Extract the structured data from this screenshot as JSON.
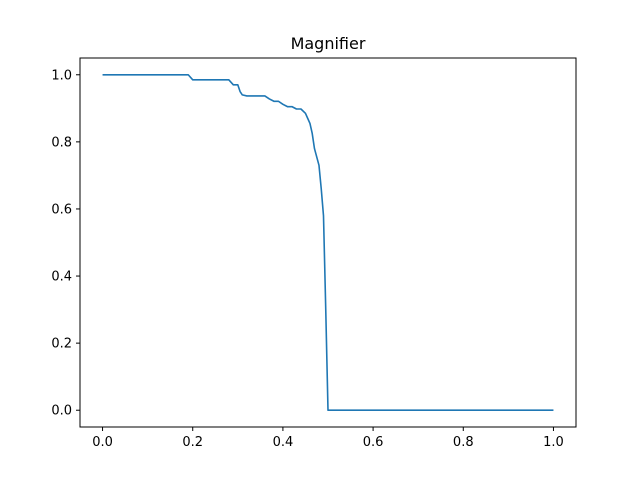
{
  "chart_data": {
    "type": "line",
    "title": "Magnifier",
    "xlabel": "",
    "ylabel": "",
    "xlim": [
      -0.05,
      1.05
    ],
    "ylim": [
      -0.05,
      1.05
    ],
    "x_ticks": [
      0.0,
      0.2,
      0.4,
      0.6,
      0.8,
      1.0
    ],
    "x_tick_labels": [
      "0.0",
      "0.2",
      "0.4",
      "0.6",
      "0.8",
      "1.0"
    ],
    "y_ticks": [
      0.0,
      0.2,
      0.4,
      0.6,
      0.8,
      1.0
    ],
    "y_tick_labels": [
      "0.0",
      "0.2",
      "0.4",
      "0.6",
      "0.8",
      "1.0"
    ],
    "grid": false,
    "legend": "none",
    "series": [
      {
        "color": "#1f77b4",
        "x": [
          0.0,
          0.19,
          0.2,
          0.28,
          0.29,
          0.3,
          0.305,
          0.31,
          0.32,
          0.36,
          0.37,
          0.38,
          0.39,
          0.4,
          0.41,
          0.42,
          0.43,
          0.44,
          0.45,
          0.455,
          0.46,
          0.465,
          0.47,
          0.475,
          0.48,
          0.485,
          0.49,
          0.495,
          0.5,
          0.505,
          0.55,
          0.6,
          0.7,
          0.8,
          0.9,
          1.0
        ],
        "y": [
          1.0,
          1.0,
          0.985,
          0.985,
          0.97,
          0.97,
          0.95,
          0.94,
          0.937,
          0.937,
          0.928,
          0.921,
          0.921,
          0.912,
          0.905,
          0.905,
          0.898,
          0.898,
          0.885,
          0.87,
          0.855,
          0.825,
          0.78,
          0.755,
          0.73,
          0.66,
          0.58,
          0.3,
          0.0,
          0.0,
          0.0,
          0.0,
          0.0,
          0.0,
          0.0,
          0.0
        ]
      }
    ]
  }
}
